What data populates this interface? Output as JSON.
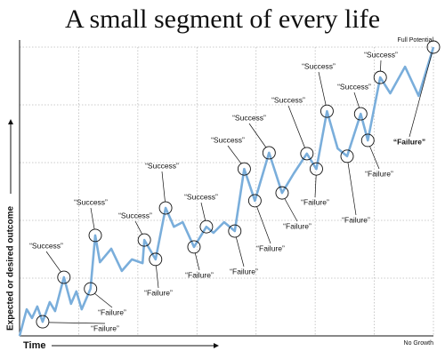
{
  "chart_data": {
    "type": "line",
    "title": "A small segment of every life",
    "x_label": "Time",
    "y_label": "Expected or desired outcome",
    "top_label": "Full Potential",
    "bottom_label": "No Growth",
    "color": "#7aaedb",
    "grid": true,
    "xlim": [
      0,
      7
    ],
    "xticks": [
      0,
      1,
      2,
      3,
      4,
      5,
      6,
      7
    ],
    "ylim": [
      0,
      100
    ],
    "yticks": [
      0,
      20,
      40,
      60,
      80,
      100
    ],
    "x": [
      0,
      0.12,
      0.21,
      0.3,
      0.39,
      0.51,
      0.6,
      0.75,
      0.87,
      0.96,
      1.05,
      1.2,
      1.28,
      1.36,
      1.55,
      1.73,
      1.9,
      2.08,
      2.11,
      2.3,
      2.47,
      2.61,
      2.76,
      2.95,
      3.16,
      3.28,
      3.46,
      3.64,
      3.8,
      3.98,
      4.22,
      4.44,
      4.64,
      4.86,
      5.02,
      5.2,
      5.38,
      5.54,
      5.77,
      5.89,
      6.1,
      6.27,
      6.52,
      6.75,
      7
    ],
    "values": [
      0,
      9.2,
      6.2,
      10.2,
      4.9,
      11.7,
      8.6,
      20.3,
      11.1,
      15.4,
      9.2,
      16.3,
      34.8,
      25.5,
      30.2,
      22.5,
      26.5,
      25.2,
      33.2,
      26.5,
      44.3,
      37.8,
      39.4,
      30.8,
      37.8,
      35.7,
      39.4,
      36.3,
      57.8,
      46.8,
      63.4,
      49.5,
      56.3,
      63.1,
      57.8,
      77.8,
      64.9,
      62.2,
      76.9,
      67.7,
      89.5,
      84,
      93.2,
      83.1,
      100
    ],
    "annotations": [
      "“Failure”",
      "“Success”",
      "“Failure”",
      "“Success”",
      "“Success”",
      "“Failure”",
      "“Success”",
      "“Failure”",
      "“Success”",
      "“Failure”",
      "“Success”",
      "“Failure”",
      "“Success”",
      "“Failure”",
      "“Success”",
      "“Failure”",
      "“Success”",
      "“Failure”",
      "“Success”",
      "“Failure”",
      "“Success”",
      "“Failure”"
    ]
  }
}
